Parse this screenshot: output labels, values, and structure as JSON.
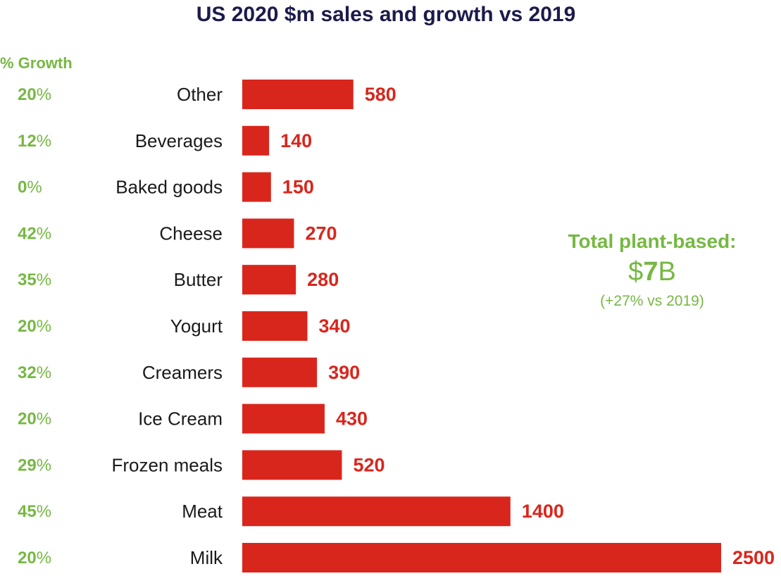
{
  "colors": {
    "bar": "#d9261c",
    "value_label": "#d9261c",
    "growth": "#76b843",
    "title": "#1c1b4b",
    "category": "#1a1a1a"
  },
  "chart_data": {
    "type": "bar",
    "orientation": "horizontal",
    "title": "US 2020 $m sales and growth vs 2019",
    "growth_header": "% Growth",
    "categories": [
      "Other",
      "Beverages",
      "Baked goods",
      "Cheese",
      "Butter",
      "Yogurt",
      "Creamers",
      "Ice Cream",
      "Frozen meals",
      "Meat",
      "Milk"
    ],
    "values": [
      580,
      140,
      150,
      270,
      280,
      340,
      390,
      430,
      520,
      1400,
      2500
    ],
    "growth_pct": [
      20,
      12,
      0,
      42,
      35,
      20,
      32,
      20,
      29,
      45,
      20
    ],
    "growth_suffix": "%",
    "xlim": [
      0,
      2500
    ],
    "units": "$m",
    "grid": false,
    "annotation": {
      "heading": "Total plant-based:",
      "total_prefix": "$",
      "total_value": "7",
      "total_suffix": "B",
      "subtext": "(+27% vs 2019)",
      "placement": "right"
    }
  }
}
